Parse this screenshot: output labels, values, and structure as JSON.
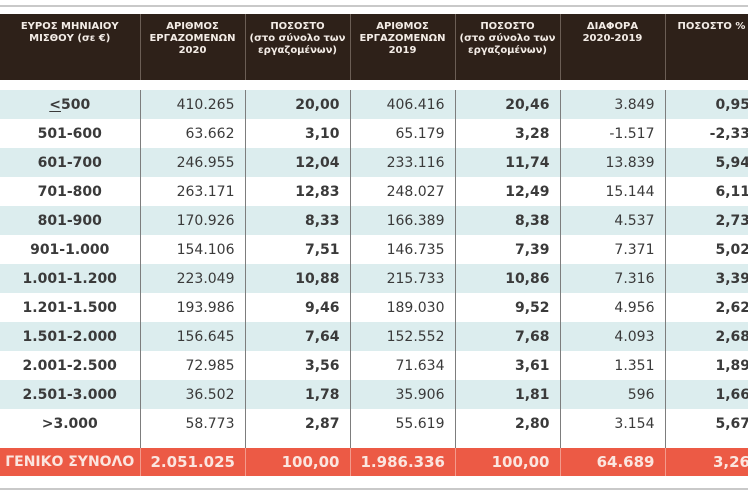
{
  "table": {
    "headers": [
      {
        "line1": "ΕΥΡΟΣ ΜΗΝΙΑΙΟΥ",
        "line2": "ΜΙΣΘΟΥ (σε €)",
        "line3": ""
      },
      {
        "line1": "ΑΡΙΘΜΟΣ",
        "line2": "ΕΡΓΑΖΟΜΕΝΩΝ",
        "line3": "2020"
      },
      {
        "line1": "ΠΟΣΟΣΤΟ",
        "line2": "(στο σύνολο των",
        "line3": "εργαζομένων)"
      },
      {
        "line1": "ΑΡΙΘΜΟΣ",
        "line2": "ΕΡΓΑΖΟΜΕΝΩΝ",
        "line3": "2019"
      },
      {
        "line1": "ΠΟΣΟΣΤΟ",
        "line2": "(στο σύνολο των",
        "line3": "εργαζομένων)"
      },
      {
        "line1": "ΔΙΑΦΟΡΑ",
        "line2": "2020-2019",
        "line3": ""
      },
      {
        "line1": "ΠΟΣΟΣΤΟ %",
        "line2": "",
        "line3": ""
      }
    ],
    "rows": [
      {
        "range": "≤500",
        "emp2020": "410.265",
        "pct2020": "20,00",
        "emp2019": "406.416",
        "pct2019": "20,46",
        "diff": "3.849",
        "pct": "0,95"
      },
      {
        "range": "501-600",
        "emp2020": "63.662",
        "pct2020": "3,10",
        "emp2019": "65.179",
        "pct2019": "3,28",
        "diff": "-1.517",
        "pct": "-2,33"
      },
      {
        "range": "601-700",
        "emp2020": "246.955",
        "pct2020": "12,04",
        "emp2019": "233.116",
        "pct2019": "11,74",
        "diff": "13.839",
        "pct": "5,94"
      },
      {
        "range": "701-800",
        "emp2020": "263.171",
        "pct2020": "12,83",
        "emp2019": "248.027",
        "pct2019": "12,49",
        "diff": "15.144",
        "pct": "6,11"
      },
      {
        "range": "801-900",
        "emp2020": "170.926",
        "pct2020": "8,33",
        "emp2019": "166.389",
        "pct2019": "8,38",
        "diff": "4.537",
        "pct": "2,73"
      },
      {
        "range": "901-1.000",
        "emp2020": "154.106",
        "pct2020": "7,51",
        "emp2019": "146.735",
        "pct2019": "7,39",
        "diff": "7.371",
        "pct": "5,02"
      },
      {
        "range": "1.001-1.200",
        "emp2020": "223.049",
        "pct2020": "10,88",
        "emp2019": "215.733",
        "pct2019": "10,86",
        "diff": "7.316",
        "pct": "3,39"
      },
      {
        "range": "1.201-1.500",
        "emp2020": "193.986",
        "pct2020": "9,46",
        "emp2019": "189.030",
        "pct2019": "9,52",
        "diff": "4.956",
        "pct": "2,62"
      },
      {
        "range": "1.501-2.000",
        "emp2020": "156.645",
        "pct2020": "7,64",
        "emp2019": "152.552",
        "pct2019": "7,68",
        "diff": "4.093",
        "pct": "2,68"
      },
      {
        "range": "2.001-2.500",
        "emp2020": "72.985",
        "pct2020": "3,56",
        "emp2019": "71.634",
        "pct2019": "3,61",
        "diff": "1.351",
        "pct": "1,89"
      },
      {
        "range": "2.501-3.000",
        "emp2020": "36.502",
        "pct2020": "1,78",
        "emp2019": "35.906",
        "pct2019": "1,81",
        "diff": "596",
        "pct": "1,66"
      },
      {
        "range": ">3.000",
        "emp2020": "58.773",
        "pct2020": "2,87",
        "emp2019": "55.619",
        "pct2019": "2,80",
        "diff": "3.154",
        "pct": "5,67"
      }
    ],
    "total": {
      "label": "ΓΕΝΙΚΟ ΣΥΝΟΛΟ",
      "emp2020": "2.051.025",
      "pct2020": "100,00",
      "emp2019": "1.986.336",
      "pct2019": "100,00",
      "diff": "64.689",
      "pct": "3,26"
    }
  },
  "colors": {
    "header_bg": "#2e2119",
    "alt_row_bg": "#dcedee",
    "total_bg": "#ec5a45"
  }
}
